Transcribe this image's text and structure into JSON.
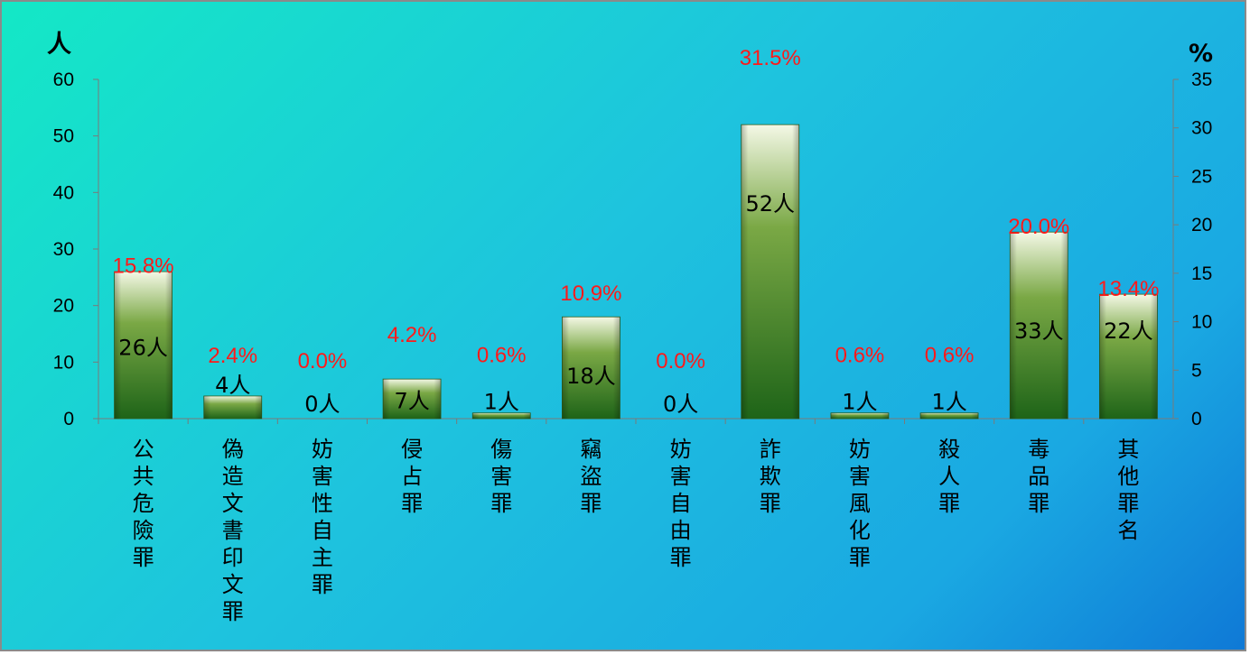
{
  "chart_data": {
    "type": "bar",
    "y_unit_left": "人",
    "y_unit_right": "%",
    "ylim_left": [
      0,
      60
    ],
    "ylim_right": [
      0,
      35
    ],
    "yticks_left": [
      "0",
      "10",
      "20",
      "30",
      "40",
      "50",
      "60"
    ],
    "yticks_right": [
      "0",
      "5",
      "10",
      "15",
      "20",
      "25",
      "30",
      "35"
    ],
    "categories": [
      "公共危險罪",
      "偽造文書印文罪",
      "妨害性自主罪",
      "侵占罪",
      "傷害罪",
      "竊盜罪",
      "妨害自由罪",
      "詐欺罪",
      "妨害風化罪",
      "殺人罪",
      "毒品罪",
      "其他罪名"
    ],
    "values": [
      26,
      4,
      0,
      7,
      1,
      18,
      0,
      52,
      1,
      1,
      33,
      22
    ],
    "value_labels": [
      "26人",
      "4人",
      "0人",
      "7人",
      "1人",
      "18人",
      "0人",
      "52人",
      "1人",
      "1人",
      "33人",
      "22人"
    ],
    "percent_values": [
      15.8,
      2.4,
      0.0,
      4.2,
      0.6,
      10.9,
      0.0,
      31.5,
      0.6,
      0.6,
      20.0,
      13.4
    ],
    "percent_labels": [
      "15.8%",
      "2.4%",
      "0.0%",
      "4.2%",
      "0.6%",
      "10.9%",
      "0.0%",
      "31.5%",
      "0.6%",
      "0.6%",
      "20.0%",
      "13.4%"
    ],
    "grid": false,
    "legend": "none",
    "colors": {
      "bar_top": "#f4f8e6",
      "bar_mid": "#7aa845",
      "bar_bottom": "#1e6418",
      "percent_label": "#ff1a1a",
      "axis": "#7a7a7a"
    }
  }
}
